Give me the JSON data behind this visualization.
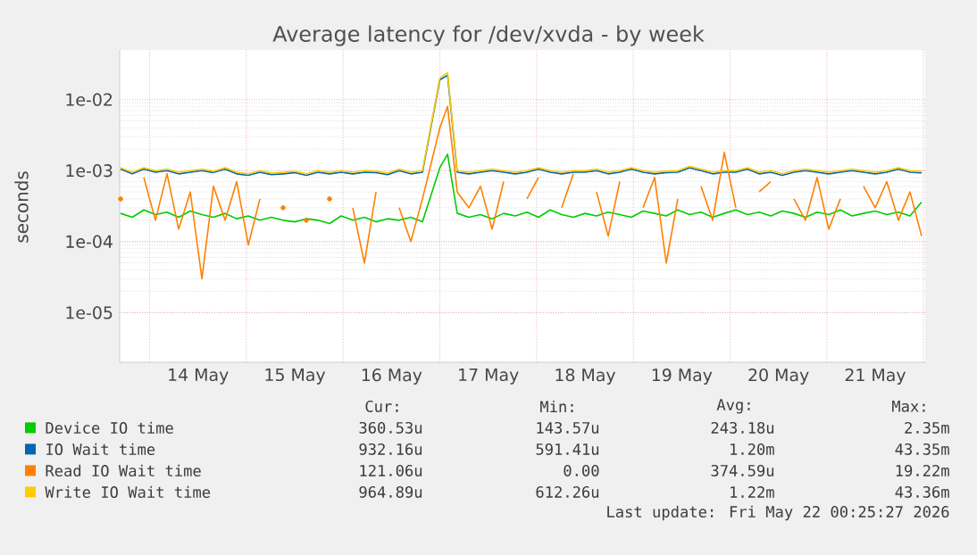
{
  "chart_data": {
    "type": "line",
    "title": "Average latency for /dev/xvda - by week",
    "ylabel": "seconds",
    "log": "y",
    "grid": true,
    "legend": "bottom",
    "xlim": [
      "2026-05-13T16:34",
      "2026-05-22T00:25"
    ],
    "ylim": [
      2e-06,
      0.05
    ],
    "xticks": [
      {
        "value": "2026-05-14T00:00",
        "label": null
      },
      {
        "value": "2026-05-14T12:00",
        "label": "14 May"
      },
      {
        "value": "2026-05-15T00:00",
        "label": null
      },
      {
        "value": "2026-05-15T12:00",
        "label": "15 May"
      },
      {
        "value": "2026-05-16T00:00",
        "label": null
      },
      {
        "value": "2026-05-16T12:00",
        "label": "16 May"
      },
      {
        "value": "2026-05-17T00:00",
        "label": null
      },
      {
        "value": "2026-05-17T12:00",
        "label": "17 May"
      },
      {
        "value": "2026-05-18T00:00",
        "label": null
      },
      {
        "value": "2026-05-18T12:00",
        "label": "18 May"
      },
      {
        "value": "2026-05-19T00:00",
        "label": null
      },
      {
        "value": "2026-05-19T12:00",
        "label": "19 May"
      },
      {
        "value": "2026-05-20T00:00",
        "label": null
      },
      {
        "value": "2026-05-20T12:00",
        "label": "20 May"
      },
      {
        "value": "2026-05-21T00:00",
        "label": null
      },
      {
        "value": "2026-05-21T12:00",
        "label": "21 May"
      },
      {
        "value": "2026-05-22T00:00",
        "label": null
      }
    ],
    "yticks": [
      {
        "value": 1e-05,
        "label": "1e-05"
      },
      {
        "value": 0.0001,
        "label": "1e-04"
      },
      {
        "value": 0.001,
        "label": "1e-03"
      },
      {
        "value": 0.01,
        "label": "1e-02"
      }
    ],
    "x": [
      "2026-05-13T16:48",
      "2026-05-13T19:41",
      "2026-05-13T22:34",
      "2026-05-14T01:26",
      "2026-05-14T04:19",
      "2026-05-14T07:12",
      "2026-05-14T10:05",
      "2026-05-14T12:58",
      "2026-05-14T15:50",
      "2026-05-14T18:43",
      "2026-05-14T21:36",
      "2026-05-15T00:29",
      "2026-05-15T03:22",
      "2026-05-15T06:14",
      "2026-05-15T09:07",
      "2026-05-15T12:00",
      "2026-05-15T14:53",
      "2026-05-15T17:46",
      "2026-05-15T20:38",
      "2026-05-15T23:31",
      "2026-05-16T02:24",
      "2026-05-16T05:17",
      "2026-05-16T08:10",
      "2026-05-16T11:02",
      "2026-05-16T13:55",
      "2026-05-16T16:48",
      "2026-05-16T19:41",
      "2026-05-17T00:00",
      "2026-05-17T01:55",
      "2026-05-17T04:19",
      "2026-05-17T07:12",
      "2026-05-17T10:05",
      "2026-05-17T12:58",
      "2026-05-17T15:50",
      "2026-05-17T18:43",
      "2026-05-17T21:36",
      "2026-05-18T00:29",
      "2026-05-18T03:22",
      "2026-05-18T06:14",
      "2026-05-18T09:07",
      "2026-05-18T12:00",
      "2026-05-18T14:53",
      "2026-05-18T17:46",
      "2026-05-18T20:38",
      "2026-05-18T23:31",
      "2026-05-19T02:24",
      "2026-05-19T05:17",
      "2026-05-19T08:10",
      "2026-05-19T11:02",
      "2026-05-19T13:55",
      "2026-05-19T16:48",
      "2026-05-19T19:41",
      "2026-05-19T22:34",
      "2026-05-20T01:26",
      "2026-05-20T04:19",
      "2026-05-20T07:12",
      "2026-05-20T10:05",
      "2026-05-20T12:58",
      "2026-05-20T15:50",
      "2026-05-20T18:43",
      "2026-05-20T21:36",
      "2026-05-21T00:29",
      "2026-05-21T03:22",
      "2026-05-21T06:14",
      "2026-05-21T09:07",
      "2026-05-21T12:00",
      "2026-05-21T14:53",
      "2026-05-21T17:46",
      "2026-05-21T20:38",
      "2026-05-21T23:31"
    ],
    "series": [
      {
        "name": "Device IO time",
        "color": "#00cc00",
        "values": [
          0.00025,
          0.00022,
          0.00028,
          0.00024,
          0.00026,
          0.00022,
          0.00027,
          0.00024,
          0.00022,
          0.00025,
          0.00021,
          0.00023,
          0.0002,
          0.00022,
          0.0002,
          0.00019,
          0.00021,
          0.0002,
          0.00018,
          0.00023,
          0.0002,
          0.00022,
          0.00019,
          0.00021,
          0.0002,
          0.00022,
          0.00019,
          0.0011,
          0.0017,
          0.00025,
          0.00022,
          0.00024,
          0.00021,
          0.00025,
          0.00023,
          0.00026,
          0.00022,
          0.00028,
          0.00024,
          0.00022,
          0.00025,
          0.00023,
          0.00026,
          0.00024,
          0.00022,
          0.00027,
          0.00025,
          0.00023,
          0.00028,
          0.00024,
          0.00026,
          0.00022,
          0.00025,
          0.00028,
          0.00024,
          0.00026,
          0.00023,
          0.00027,
          0.00025,
          0.00022,
          0.00026,
          0.00024,
          0.00028,
          0.00023,
          0.00025,
          0.00027,
          0.00024,
          0.00026,
          0.00023,
          0.00036
        ]
      },
      {
        "name": "IO Wait time",
        "color": "#0066b3",
        "values": [
          0.00105,
          0.0009,
          0.00105,
          0.00095,
          0.001,
          0.0009,
          0.00095,
          0.001,
          0.00094,
          0.00105,
          0.0009,
          0.00086,
          0.00095,
          0.00088,
          0.0009,
          0.00094,
          0.00086,
          0.00095,
          0.0009,
          0.00095,
          0.0009,
          0.00095,
          0.00094,
          0.00088,
          0.001,
          0.0009,
          0.00095,
          0.019,
          0.022,
          0.00095,
          0.0009,
          0.00095,
          0.001,
          0.00095,
          0.0009,
          0.00095,
          0.00105,
          0.00095,
          0.0009,
          0.00095,
          0.00095,
          0.001,
          0.0009,
          0.00095,
          0.00105,
          0.00095,
          0.0009,
          0.00094,
          0.00095,
          0.0011,
          0.001,
          0.0009,
          0.00095,
          0.00095,
          0.00105,
          0.0009,
          0.00095,
          0.00086,
          0.00095,
          0.001,
          0.00095,
          0.0009,
          0.00095,
          0.001,
          0.00095,
          0.0009,
          0.00095,
          0.00105,
          0.00095,
          0.00093
        ]
      },
      {
        "name": "Read IO Wait time",
        "color": "#ff8000",
        "values": [
          0.0004,
          null,
          0.0008,
          0.0002,
          0.0009,
          0.00015,
          0.0005,
          3e-05,
          0.0006,
          0.0002,
          0.0007,
          9e-05,
          0.0004,
          null,
          0.0003,
          null,
          0.0002,
          null,
          0.0004,
          null,
          0.0003,
          5e-05,
          0.0005,
          null,
          0.0003,
          0.0001,
          0.0004,
          0.004,
          0.008,
          0.0005,
          0.0003,
          0.0006,
          0.00015,
          0.0007,
          null,
          0.0004,
          0.0008,
          null,
          0.0003,
          0.0009,
          null,
          0.0005,
          0.00012,
          0.0007,
          null,
          0.0003,
          0.0008,
          5e-05,
          0.0004,
          null,
          0.0006,
          0.0002,
          0.0018,
          0.0003,
          null,
          0.0005,
          0.0007,
          null,
          0.0004,
          0.0002,
          0.0008,
          0.00015,
          0.0004,
          null,
          0.0006,
          0.0003,
          0.0007,
          0.0002,
          0.0005,
          0.00012
        ]
      },
      {
        "name": "Write IO Wait time",
        "color": "#ffcc00",
        "values": [
          0.0011,
          0.00095,
          0.0011,
          0.001,
          0.00105,
          0.00095,
          0.001,
          0.00105,
          0.00098,
          0.0011,
          0.00095,
          0.0009,
          0.001,
          0.00092,
          0.00095,
          0.00098,
          0.0009,
          0.001,
          0.00095,
          0.001,
          0.00095,
          0.001,
          0.00098,
          0.00092,
          0.00105,
          0.00095,
          0.001,
          0.02,
          0.024,
          0.001,
          0.00095,
          0.001,
          0.00105,
          0.001,
          0.00095,
          0.001,
          0.0011,
          0.001,
          0.00095,
          0.001,
          0.001,
          0.00105,
          0.00095,
          0.001,
          0.0011,
          0.001,
          0.00095,
          0.00098,
          0.001,
          0.00115,
          0.00105,
          0.00095,
          0.001,
          0.001,
          0.0011,
          0.00095,
          0.001,
          0.0009,
          0.001,
          0.00105,
          0.001,
          0.00095,
          0.001,
          0.00105,
          0.001,
          0.00095,
          0.001,
          0.0011,
          0.001,
          0.00098
        ]
      }
    ],
    "annotations": [
      "Cur:",
      "Min:",
      "Avg:",
      "Max:",
      "360.53u",
      "143.57u",
      "243.18u",
      "2.35m",
      "932.16u",
      "591.41u",
      "1.20m",
      "43.35m",
      "121.06u",
      "0.00",
      "374.59u",
      "19.22m",
      "964.89u",
      "612.26u",
      "1.22m",
      "43.36m",
      "Last update: Fri May 22 00:25:27 2026"
    ]
  }
}
